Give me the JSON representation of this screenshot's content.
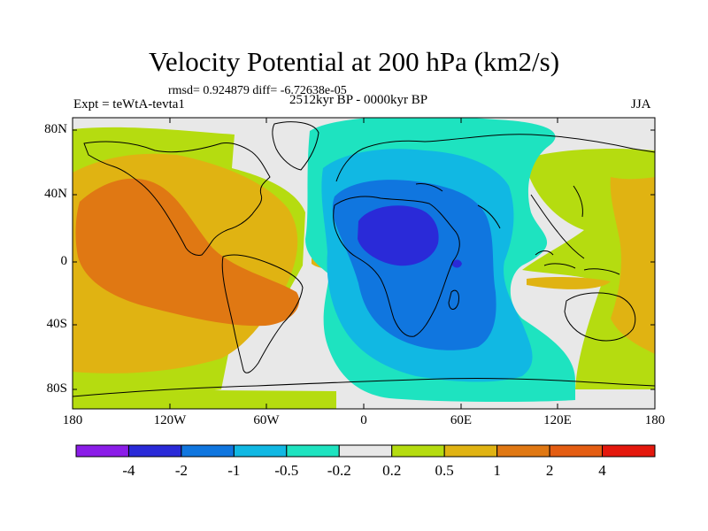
{
  "title": "Velocity Potential at 200 hPa (km2/s)",
  "stats": "rmsd= 0.924879 diff= -6.72638e-05",
  "experiment": "Expt = teWtA-tevta1",
  "period": "2512kyr BP - 0000kyr BP",
  "season": "JJA",
  "lat_ticks": [
    "80N",
    "40N",
    "0",
    "40S",
    "80S"
  ],
  "lon_ticks": [
    "180",
    "120W",
    "60W",
    "0",
    "60E",
    "120E",
    "180"
  ],
  "colorbar": {
    "colors": [
      "#8b1de8",
      "#2a2ad8",
      "#1076df",
      "#11b8e3",
      "#1ee3c0",
      "#e8e8e8",
      "#b5dc10",
      "#e0b312",
      "#e07813",
      "#e45d12",
      "#e4180d"
    ],
    "labels": [
      "-4",
      "-2",
      "-1",
      "-0.5",
      "-0.2",
      "0.2",
      "0.5",
      "1",
      "2",
      "4"
    ]
  },
  "field_colors": {
    "neutral": "#e8e8e8",
    "pos_low": "#b5dc10",
    "pos_mid": "#e0b312",
    "pos_high": "#e07813",
    "neg_low": "#1ee3c0",
    "neg_mid": "#11b8e3",
    "neg_high": "#1076df",
    "neg_max": "#2a2ad8"
  }
}
